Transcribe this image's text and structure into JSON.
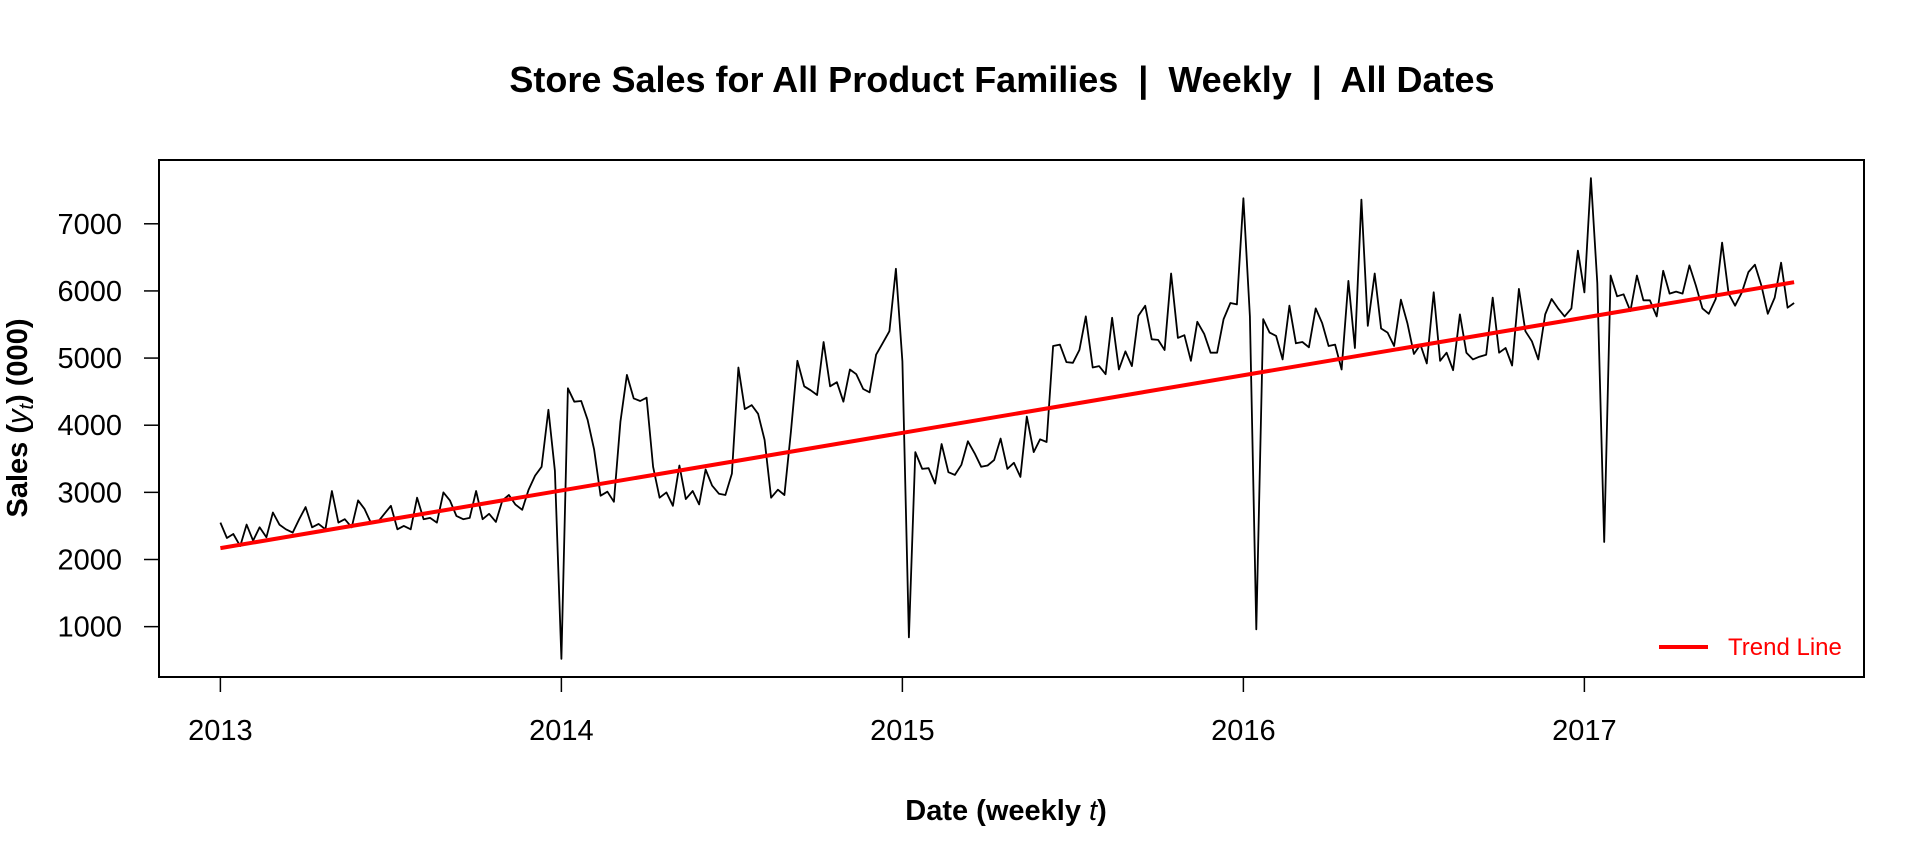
{
  "chart_data": {
    "type": "line",
    "title": "Store Sales for All Product Families  |  Weekly  |  All Dates",
    "xlabel_prefix": "Date (weekly ",
    "xlabel_var": "t",
    "xlabel_suffix": ")",
    "ylabel_prefix": "Sales (",
    "ylabel_var": "y",
    "ylabel_sub": "t",
    "ylabel_suffix": ") (000)",
    "x_ticks": [
      2013,
      2014,
      2015,
      2016,
      2017
    ],
    "y_ticks": [
      1000,
      2000,
      3000,
      4000,
      5000,
      6000,
      7000
    ],
    "xlim": [
      2012.82,
      2017.82
    ],
    "ylim": [
      250,
      7950
    ],
    "grid": false,
    "legend_position": "bottom-right",
    "series": [
      {
        "name": "",
        "color": "#000000",
        "x": [
          2013.0,
          2013.019,
          2013.038,
          2013.058,
          2013.077,
          2013.096,
          2013.115,
          2013.135,
          2013.154,
          2013.173,
          2013.192,
          2013.212,
          2013.231,
          2013.25,
          2013.269,
          2013.288,
          2013.308,
          2013.327,
          2013.346,
          2013.365,
          2013.385,
          2013.404,
          2013.423,
          2013.442,
          2013.462,
          2013.481,
          2013.5,
          2013.519,
          2013.538,
          2013.558,
          2013.577,
          2013.596,
          2013.615,
          2013.635,
          2013.654,
          2013.673,
          2013.692,
          2013.712,
          2013.731,
          2013.75,
          2013.769,
          2013.788,
          2013.808,
          2013.827,
          2013.846,
          2013.865,
          2013.885,
          2013.904,
          2013.923,
          2013.942,
          2013.962,
          2013.981,
          2014.0,
          2014.019,
          2014.038,
          2014.058,
          2014.077,
          2014.096,
          2014.115,
          2014.135,
          2014.154,
          2014.173,
          2014.192,
          2014.212,
          2014.231,
          2014.25,
          2014.269,
          2014.288,
          2014.308,
          2014.327,
          2014.346,
          2014.365,
          2014.385,
          2014.404,
          2014.423,
          2014.442,
          2014.462,
          2014.481,
          2014.5,
          2014.519,
          2014.538,
          2014.558,
          2014.577,
          2014.596,
          2014.615,
          2014.635,
          2014.654,
          2014.673,
          2014.692,
          2014.712,
          2014.731,
          2014.75,
          2014.769,
          2014.788,
          2014.808,
          2014.827,
          2014.846,
          2014.865,
          2014.885,
          2014.904,
          2014.923,
          2014.942,
          2014.962,
          2014.981,
          2015.0,
          2015.019,
          2015.038,
          2015.058,
          2015.077,
          2015.096,
          2015.115,
          2015.135,
          2015.154,
          2015.173,
          2015.192,
          2015.212,
          2015.231,
          2015.25,
          2015.269,
          2015.288,
          2015.308,
          2015.327,
          2015.346,
          2015.365,
          2015.385,
          2015.404,
          2015.423,
          2015.442,
          2015.462,
          2015.481,
          2015.5,
          2015.519,
          2015.538,
          2015.558,
          2015.577,
          2015.596,
          2015.615,
          2015.635,
          2015.654,
          2015.673,
          2015.692,
          2015.712,
          2015.731,
          2015.75,
          2015.769,
          2015.788,
          2015.808,
          2015.827,
          2015.846,
          2015.865,
          2015.885,
          2015.904,
          2015.923,
          2015.942,
          2015.962,
          2015.981,
          2016.0,
          2016.019,
          2016.038,
          2016.058,
          2016.077,
          2016.096,
          2016.115,
          2016.135,
          2016.154,
          2016.173,
          2016.192,
          2016.212,
          2016.231,
          2016.25,
          2016.269,
          2016.288,
          2016.308,
          2016.327,
          2016.346,
          2016.365,
          2016.385,
          2016.404,
          2016.423,
          2016.442,
          2016.462,
          2016.481,
          2016.5,
          2016.519,
          2016.538,
          2016.558,
          2016.577,
          2016.596,
          2016.615,
          2016.635,
          2016.654,
          2016.673,
          2016.692,
          2016.712,
          2016.731,
          2016.75,
          2016.769,
          2016.788,
          2016.808,
          2016.827,
          2016.846,
          2016.865,
          2016.885,
          2016.904,
          2016.923,
          2016.942,
          2016.962,
          2016.981,
          2017.0,
          2017.019,
          2017.038,
          2017.058,
          2017.077,
          2017.096,
          2017.115,
          2017.135,
          2017.154,
          2017.173,
          2017.192,
          2017.212,
          2017.231,
          2017.25,
          2017.269,
          2017.288,
          2017.308,
          2017.327,
          2017.346,
          2017.365,
          2017.385,
          2017.404,
          2017.423,
          2017.442,
          2017.462,
          2017.481,
          2017.5,
          2017.519,
          2017.538,
          2017.558,
          2017.577,
          2017.596,
          2017.615
        ],
        "y": [
          2550,
          2320,
          2380,
          2200,
          2520,
          2280,
          2480,
          2330,
          2700,
          2520,
          2450,
          2400,
          2600,
          2780,
          2480,
          2530,
          2450,
          3020,
          2550,
          2600,
          2480,
          2880,
          2750,
          2540,
          2560,
          2680,
          2800,
          2450,
          2500,
          2450,
          2920,
          2600,
          2620,
          2550,
          3000,
          2880,
          2650,
          2600,
          2620,
          3020,
          2600,
          2680,
          2560,
          2880,
          2960,
          2820,
          2740,
          3040,
          3250,
          3380,
          4230,
          3320,
          520,
          4550,
          4350,
          4360,
          4080,
          3640,
          2950,
          3010,
          2860,
          4050,
          4750,
          4400,
          4360,
          4410,
          3380,
          2920,
          3000,
          2800,
          3400,
          2900,
          3020,
          2820,
          3340,
          3100,
          2980,
          2960,
          3280,
          4860,
          4240,
          4300,
          4170,
          3780,
          2920,
          3040,
          2960,
          3900,
          4960,
          4580,
          4520,
          4450,
          5240,
          4580,
          4640,
          4350,
          4830,
          4760,
          4540,
          4490,
          5050,
          5220,
          5400,
          6330,
          4950,
          840,
          3600,
          3350,
          3360,
          3130,
          3720,
          3300,
          3260,
          3410,
          3760,
          3580,
          3380,
          3400,
          3480,
          3800,
          3350,
          3440,
          3230,
          4130,
          3600,
          3790,
          3750,
          5180,
          5200,
          4940,
          4930,
          5120,
          5620,
          4860,
          4880,
          4760,
          5600,
          4830,
          5100,
          4880,
          5630,
          5780,
          5280,
          5270,
          5120,
          6260,
          5300,
          5340,
          4960,
          5540,
          5360,
          5080,
          5080,
          5580,
          5820,
          5800,
          7380,
          5620,
          960,
          5580,
          5380,
          5330,
          4980,
          5780,
          5220,
          5240,
          5160,
          5740,
          5520,
          5180,
          5200,
          4830,
          6150,
          5150,
          7360,
          5480,
          6260,
          5440,
          5380,
          5180,
          5870,
          5520,
          5060,
          5200,
          4920,
          5980,
          4960,
          5080,
          4820,
          5650,
          5080,
          4980,
          5020,
          5050,
          5900,
          5080,
          5150,
          4890,
          6030,
          5400,
          5250,
          4980,
          5650,
          5880,
          5740,
          5620,
          5740,
          6600,
          5980,
          7680,
          6120,
          2260,
          6230,
          5920,
          5950,
          5700,
          6230,
          5860,
          5860,
          5620,
          6300,
          5960,
          5990,
          5960,
          6380,
          6080,
          5740,
          5660,
          5880,
          6720,
          5960,
          5780,
          5980,
          6280,
          6390,
          6080,
          5660,
          5900,
          6420,
          5750,
          5820
        ]
      },
      {
        "name": "Trend Line",
        "color": "#ff0000",
        "x": [
          2013.0,
          2017.615
        ],
        "y": [
          2170,
          6130
        ]
      }
    ]
  }
}
